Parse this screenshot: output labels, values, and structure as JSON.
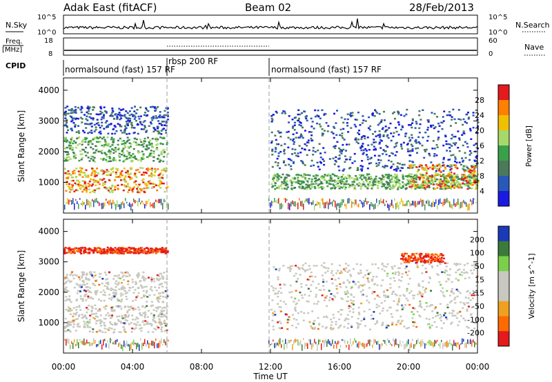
{
  "header": {
    "station": "Adak East (fitACF)",
    "beam": "Beam 02",
    "date": "28/Feb/2013"
  },
  "strips": {
    "nsky": {
      "label": "N.Sky",
      "left_ticks": [
        "10^5",
        "10^0"
      ],
      "right_ticks": [
        "10^5",
        "10^0"
      ],
      "right_label": "N.Search"
    },
    "freq": {
      "label_top": "Freq.",
      "label_bottom": "[MHz]",
      "left_ticks": [
        "18",
        "8"
      ],
      "right_ticks": [
        "60",
        "0"
      ],
      "right_label": "Nave"
    },
    "cpid": {
      "label": "CPID",
      "segments": [
        {
          "text": "normalsound (fast) 157 RF",
          "start": 0,
          "end": 6
        },
        {
          "text": "rbsp 200 RF",
          "start": 6,
          "end": 12
        },
        {
          "text": "normalsound (fast) 157 RF",
          "start": 12,
          "end": 24
        }
      ]
    }
  },
  "chart_data": [
    {
      "type": "heatmap",
      "name": "power",
      "ylabel": "Slant Range [km]",
      "yticks": [
        "1000",
        "2000",
        "3000",
        "4000"
      ],
      "ylim": [
        0,
        4400
      ],
      "xlim": [
        0,
        24
      ],
      "colorbar": {
        "label": "Power [dB]",
        "ticks": [
          "28",
          "24",
          "20",
          "16",
          "12",
          "8",
          "4"
        ],
        "colors": [
          "#e41a1c",
          "#ff7f00",
          "#f0c000",
          "#a6d96a",
          "#3aa04a",
          "#4a7a5a",
          "#2858b8",
          "#1a1ae0"
        ]
      },
      "bands": [
        {
          "t0": 0,
          "t1": 6,
          "r0": 700,
          "r1": 1500,
          "level": "high"
        },
        {
          "t0": 0,
          "t1": 6,
          "r0": 1700,
          "r1": 2500,
          "level": "mid"
        },
        {
          "t0": 0,
          "t1": 6,
          "r0": 2600,
          "r1": 3500,
          "level": "low"
        },
        {
          "t0": 12,
          "t1": 24,
          "r0": 800,
          "r1": 1300,
          "level": "mid"
        },
        {
          "t0": 12,
          "t1": 24,
          "r0": 1400,
          "r1": 3400,
          "level": "low"
        },
        {
          "t0": 20,
          "t1": 24,
          "r0": 800,
          "r1": 1600,
          "level": "high"
        }
      ]
    },
    {
      "type": "heatmap",
      "name": "velocity",
      "ylabel": "Slant Range [km]",
      "yticks": [
        "1000",
        "2000",
        "3000",
        "4000"
      ],
      "ylim": [
        0,
        4400
      ],
      "xlim": [
        0,
        24
      ],
      "colorbar": {
        "label": "Velocity [m s^-1]",
        "ticks": [
          "200",
          "100",
          "50",
          "15",
          "-15",
          "-50",
          "-100",
          "-200"
        ],
        "colors": [
          "#1a3ab8",
          "#3a7a3a",
          "#7ad04a",
          "#c8c8c0",
          "#c8c8c0",
          "#f0a020",
          "#ff6a00",
          "#e41a1c"
        ]
      },
      "bands": [
        {
          "t0": 0,
          "t1": 6,
          "r0": 700,
          "r1": 1600,
          "level": "gray"
        },
        {
          "t0": 0,
          "t1": 6,
          "r0": 1700,
          "r1": 2700,
          "level": "gray"
        },
        {
          "t0": 0,
          "t1": 6,
          "r0": 3300,
          "r1": 3500,
          "level": "red"
        },
        {
          "t0": 12,
          "t1": 24,
          "r0": 800,
          "r1": 3000,
          "level": "gray"
        },
        {
          "t0": 19.5,
          "t1": 22,
          "r0": 3000,
          "r1": 3300,
          "level": "red"
        }
      ]
    }
  ],
  "xaxis": {
    "ticks": [
      "00:00",
      "04:00",
      "08:00",
      "12:00",
      "16:00",
      "20:00",
      "00:00"
    ],
    "label": "Time UT"
  }
}
